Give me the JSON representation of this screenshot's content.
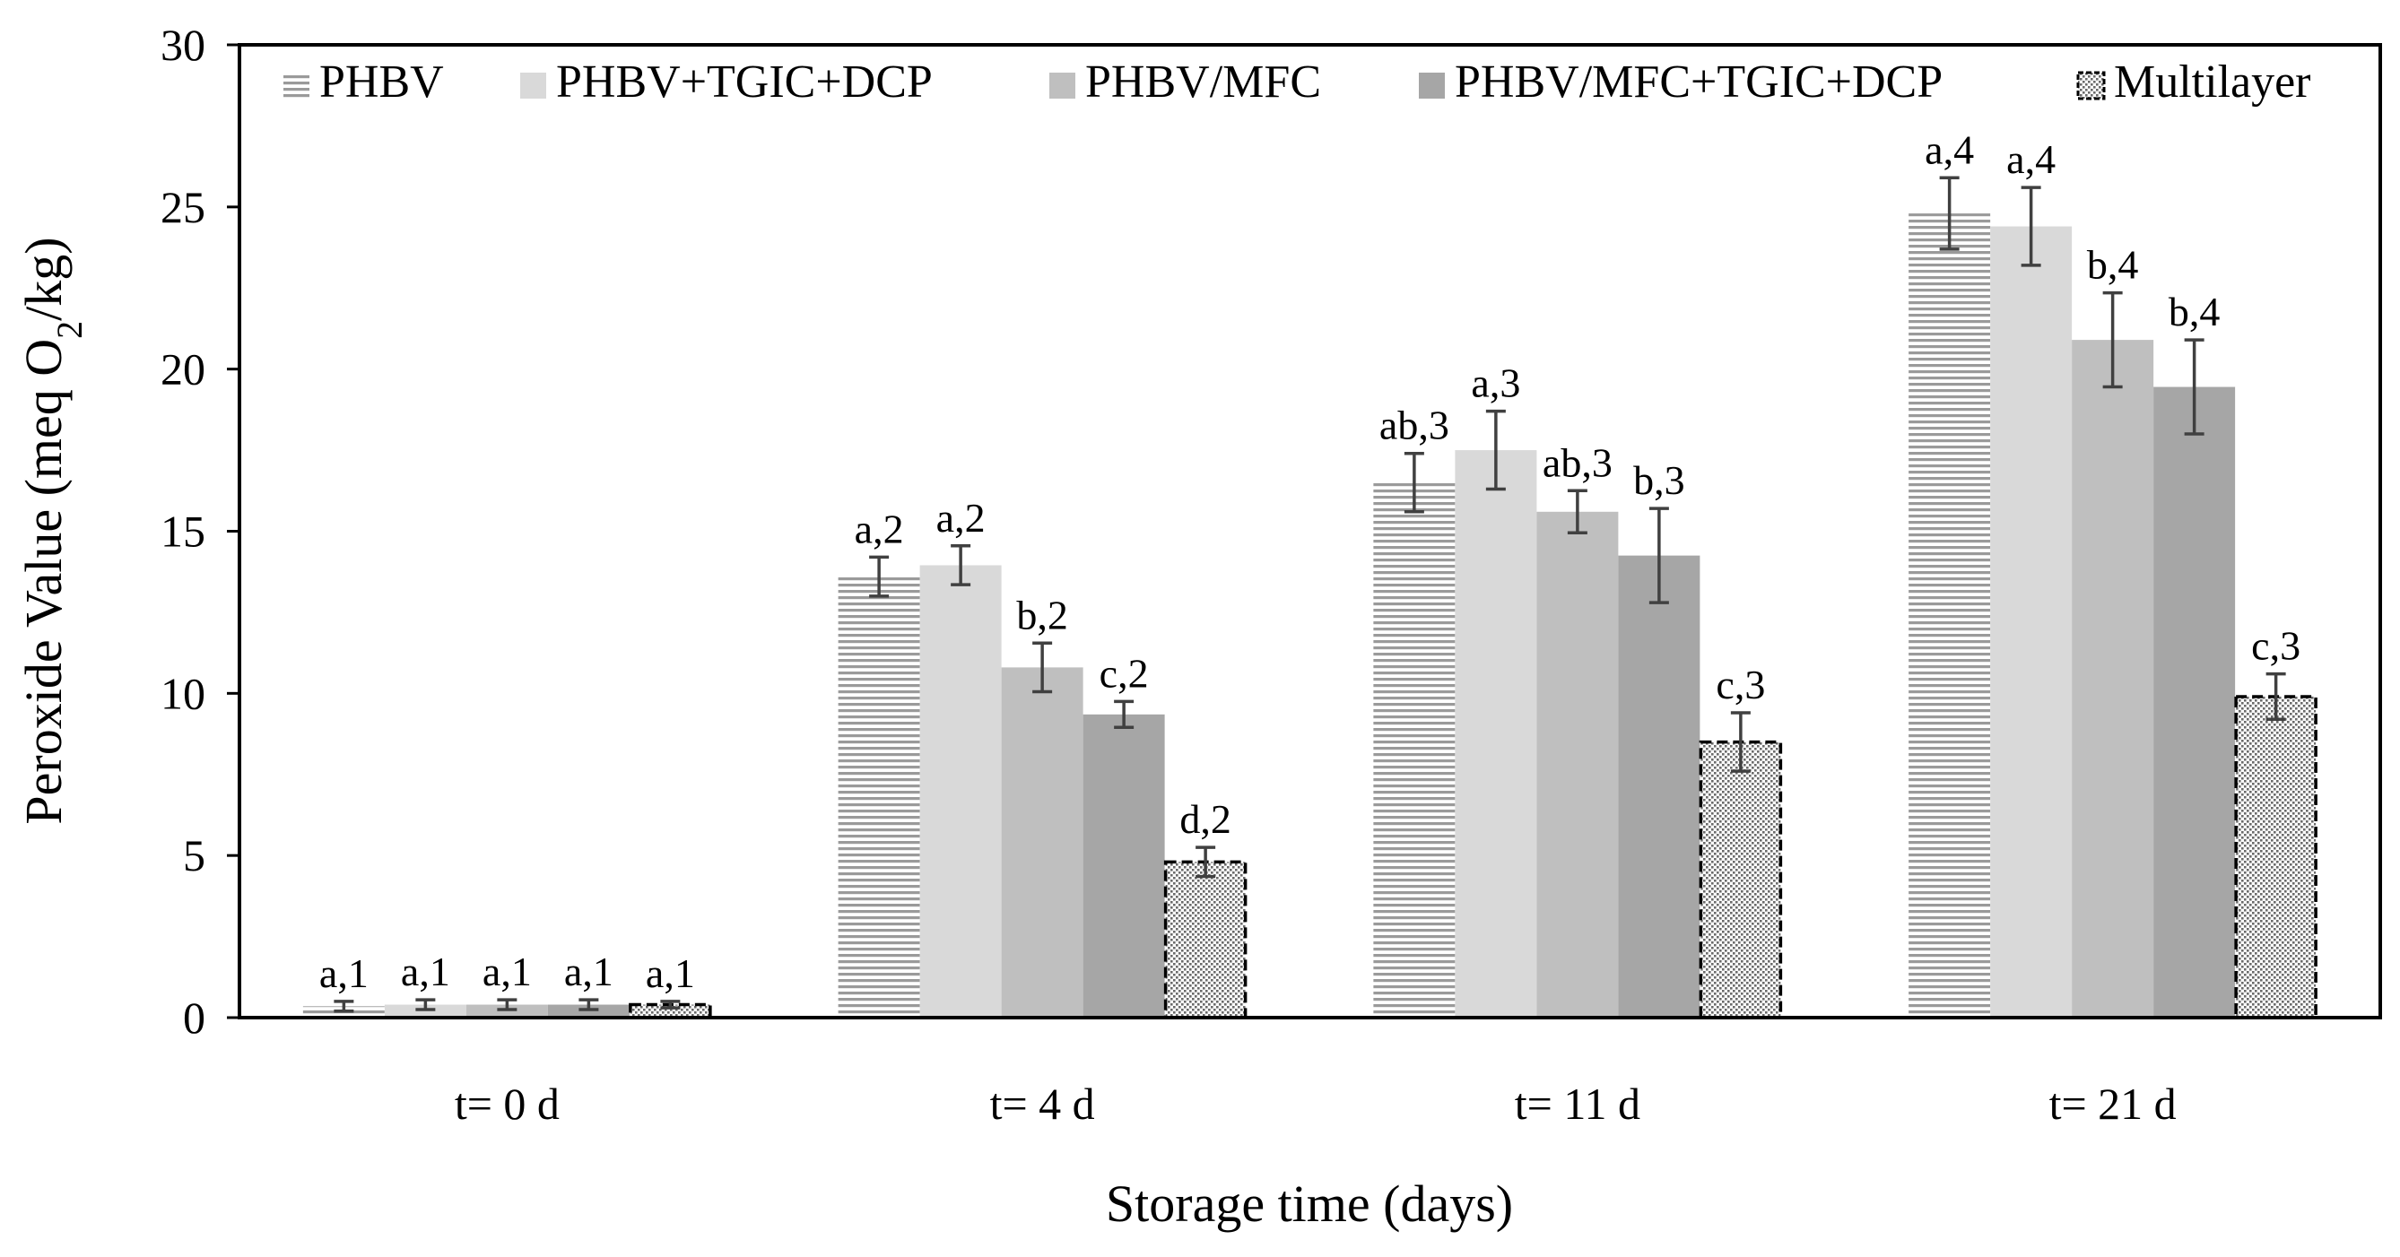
{
  "chart_data": {
    "type": "bar",
    "title": "",
    "xlabel": "Storage time (days)",
    "ylabel_main": "Peroxide Value (meq O",
    "ylabel_sub": "2",
    "ylabel_end": "/kg)",
    "ylim": [
      0,
      30
    ],
    "yticks": [
      "0",
      "5",
      "10",
      "15",
      "20",
      "25",
      "30"
    ],
    "grid": false,
    "legend_position": "top",
    "categories": [
      "t= 0 d",
      "t= 4 d",
      "t= 11 d",
      "t= 21 d"
    ],
    "series": [
      {
        "name": "PHBV",
        "pattern": "hstripe",
        "color": "#a6a6a6",
        "values": [
          0.35,
          13.6,
          16.5,
          24.8
        ],
        "errors": [
          0.15,
          0.6,
          0.9,
          1.1
        ],
        "labels": [
          "a,1",
          "a,2",
          "ab,3",
          "a,4"
        ]
      },
      {
        "name": "PHBV+TGIC+DCP",
        "pattern": "solid",
        "color": "#d9d9d9",
        "values": [
          0.4,
          13.95,
          17.5,
          24.4
        ],
        "errors": [
          0.15,
          0.6,
          1.2,
          1.2
        ],
        "labels": [
          "a,1",
          "a,2",
          "a,3",
          "a,4"
        ]
      },
      {
        "name": "PHBV/MFC",
        "pattern": "solid",
        "color": "#bfbfbf",
        "values": [
          0.4,
          10.8,
          15.6,
          20.9
        ],
        "errors": [
          0.15,
          0.75,
          0.65,
          1.45
        ],
        "labels": [
          "a,1",
          "b,2",
          "ab,3",
          "b,4"
        ]
      },
      {
        "name": "PHBV/MFC+TGIC+DCP",
        "pattern": "solid",
        "color": "#a6a6a6",
        "values": [
          0.4,
          9.35,
          14.25,
          19.45
        ],
        "errors": [
          0.15,
          0.4,
          1.45,
          1.45
        ],
        "labels": [
          "a,1",
          "c,2",
          "b,3",
          "b,4"
        ]
      },
      {
        "name": "Multilayer",
        "pattern": "dots",
        "color": "#d9d9d9",
        "values": [
          0.4,
          4.8,
          8.5,
          9.9
        ],
        "errors": [
          0.1,
          0.45,
          0.9,
          0.7
        ],
        "labels": [
          "a,1",
          "d,2",
          "c,3",
          "c,3"
        ]
      }
    ]
  }
}
